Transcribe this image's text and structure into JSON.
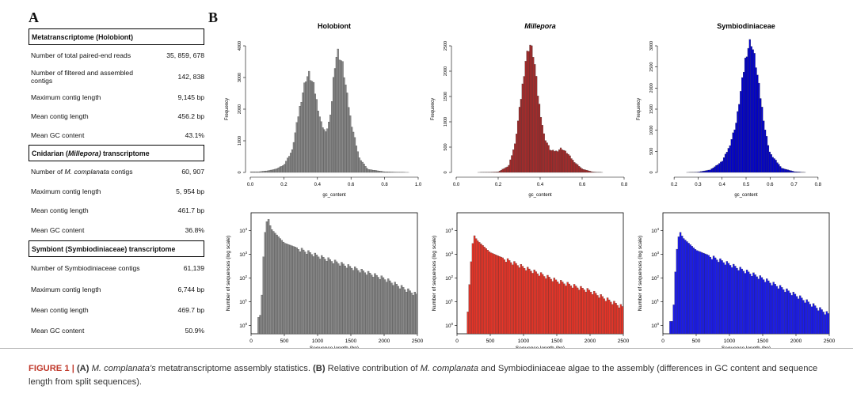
{
  "panels": {
    "a": "A",
    "b": "B"
  },
  "stats": {
    "sections": [
      {
        "title": "Metatranscriptome (Holobiont)",
        "rows": [
          {
            "label": "Number of total paired-end reads",
            "value": "35, 859, 678"
          },
          {
            "label": "Number of filtered and assembled contigs",
            "value": "142, 838"
          },
          {
            "label": "Maximum contig length",
            "value": "9,145 bp"
          },
          {
            "label": "Mean contig length",
            "value": "456.2 bp"
          },
          {
            "label": "Mean GC content",
            "value": "43.1%"
          }
        ]
      },
      {
        "title_pre": "Cnidarian (",
        "title_em": "Millepora)",
        "title_post": " transcriptome",
        "rows": [
          {
            "label_pre": "Number of ",
            "label_em": "M. complanata",
            "label_post": " contigs",
            "value": "60, 907"
          },
          {
            "label": "Maximum contig length",
            "value": "5, 954 bp"
          },
          {
            "label": "Mean contig length",
            "value": "461.7 bp"
          },
          {
            "label": "Mean GC content",
            "value": "36.8%"
          }
        ]
      },
      {
        "title": "Symbiont (Symbiodiniaceae) transcriptome",
        "rows": [
          {
            "label": "Number of Symbiodiniaceae contigs",
            "value": "61,139"
          },
          {
            "label": "Maximum contig length",
            "value": "6,744 bp"
          },
          {
            "label": "Mean contig length",
            "value": "469.7 bp"
          },
          {
            "label": "Mean GC content",
            "value": "50.9%"
          }
        ]
      }
    ]
  },
  "chart_data": [
    {
      "type": "bar",
      "title": "Holobiont",
      "xlabel": "gc_content",
      "ylabel": "Frequency",
      "color": "#888888",
      "xlim": [
        0,
        1.0
      ],
      "ylim": [
        0,
        4000
      ],
      "xticks": [
        "0.0",
        "0.2",
        "0.4",
        "0.6",
        "0.8",
        "1.0"
      ],
      "yticks": [
        "0",
        "1000",
        "2000",
        "3000",
        "4000"
      ],
      "x": [
        0.05,
        0.1,
        0.15,
        0.2,
        0.25,
        0.3,
        0.33,
        0.35,
        0.38,
        0.42,
        0.45,
        0.48,
        0.5,
        0.52,
        0.55,
        0.6,
        0.65,
        0.7,
        0.8,
        0.9,
        0.95
      ],
      "values": [
        20,
        50,
        100,
        230,
        700,
        2200,
        2950,
        3100,
        2700,
        1600,
        1250,
        1800,
        3300,
        3850,
        3400,
        1600,
        450,
        100,
        20,
        5,
        0
      ]
    },
    {
      "type": "bar",
      "title": "Millepora",
      "xlabel": "gc_content",
      "ylabel": "Frequency",
      "color": "#a52a2a",
      "xlim": [
        0,
        0.8
      ],
      "ylim": [
        0,
        2500
      ],
      "xticks": [
        "0.0",
        "0.2",
        "0.4",
        "0.6",
        "0.8"
      ],
      "yticks": [
        "0",
        "500",
        "1000",
        "1500",
        "2000",
        "2500"
      ],
      "x": [
        0.1,
        0.2,
        0.25,
        0.28,
        0.31,
        0.33,
        0.35,
        0.37,
        0.39,
        0.42,
        0.45,
        0.48,
        0.5,
        0.53,
        0.56,
        0.6,
        0.65,
        0.7
      ],
      "values": [
        0,
        10,
        130,
        550,
        1500,
        2200,
        2550,
        2300,
        1500,
        700,
        430,
        420,
        480,
        380,
        220,
        70,
        10,
        0
      ]
    },
    {
      "type": "bar",
      "title": "Symbiodiniaceae",
      "xlabel": "gc_content",
      "ylabel": "Frequency",
      "color": "#0000cc",
      "xlim": [
        0.15,
        0.85
      ],
      "ylim": [
        0,
        3000
      ],
      "xticks": [
        "0.2",
        "0.3",
        "0.4",
        "0.5",
        "0.6",
        "0.7",
        "0.8"
      ],
      "yticks": [
        "0",
        "500",
        "1000",
        "1500",
        "2000",
        "2500",
        "3000"
      ],
      "x": [
        0.25,
        0.3,
        0.35,
        0.4,
        0.43,
        0.46,
        0.48,
        0.5,
        0.52,
        0.54,
        0.56,
        0.58,
        0.6,
        0.65,
        0.7,
        0.75
      ],
      "values": [
        0,
        10,
        60,
        260,
        600,
        1200,
        2000,
        2800,
        3150,
        2600,
        1800,
        1000,
        450,
        100,
        20,
        0
      ]
    },
    {
      "type": "bar",
      "xlabel": "Sequence length (bp)",
      "ylabel": "Number of sequences (log scale)",
      "color": "#888888",
      "yscale": "log",
      "xlim": [
        0,
        2500
      ],
      "xticks": [
        "0",
        "500",
        "1000",
        "1500",
        "2000",
        "2500"
      ],
      "x": [
        100,
        150,
        200,
        250,
        300,
        500,
        1000,
        1500,
        2000,
        2500
      ],
      "values": [
        2,
        3,
        5000,
        40000,
        12000,
        3000,
        900,
        300,
        100,
        20
      ]
    },
    {
      "type": "bar",
      "xlabel": "Sequence length (bp)",
      "ylabel": "Number of sequences (log scale)",
      "color": "#e83528",
      "yscale": "log",
      "xlim": [
        0,
        2500
      ],
      "xticks": [
        "0",
        "500",
        "1000",
        "1500",
        "2000",
        "2500"
      ],
      "x": [
        150,
        200,
        250,
        300,
        500,
        1000,
        1500,
        2000,
        2500
      ],
      "values": [
        1,
        200,
        7000,
        4000,
        1200,
        300,
        80,
        30,
        6
      ]
    },
    {
      "type": "bar",
      "xlabel": "Sequence length (bp)",
      "ylabel": "Number of sequences (log scale)",
      "color": "#1a1aee",
      "yscale": "log",
      "xlim": [
        0,
        2500
      ],
      "xticks": [
        "0",
        "500",
        "1000",
        "1500",
        "2000",
        "2500"
      ],
      "x": [
        100,
        150,
        200,
        250,
        300,
        500,
        1000,
        1500,
        2000,
        2500
      ],
      "values": [
        1.5,
        1.5,
        900,
        10000,
        5000,
        1500,
        400,
        100,
        20,
        3
      ]
    }
  ],
  "caption": {
    "fig": "FIGURE 1 |",
    "a_tag": " (A) ",
    "a_em": "M. complanata's",
    "a_rest": " metatranscriptome assembly statistics.",
    "b_tag": " (B) ",
    "b_pre": "Relative contribution of ",
    "b_em": "M. complanata",
    "b_rest": " and Symbiodiniaceae algae to the assembly (differences in GC content and sequence length from split sequences)."
  }
}
